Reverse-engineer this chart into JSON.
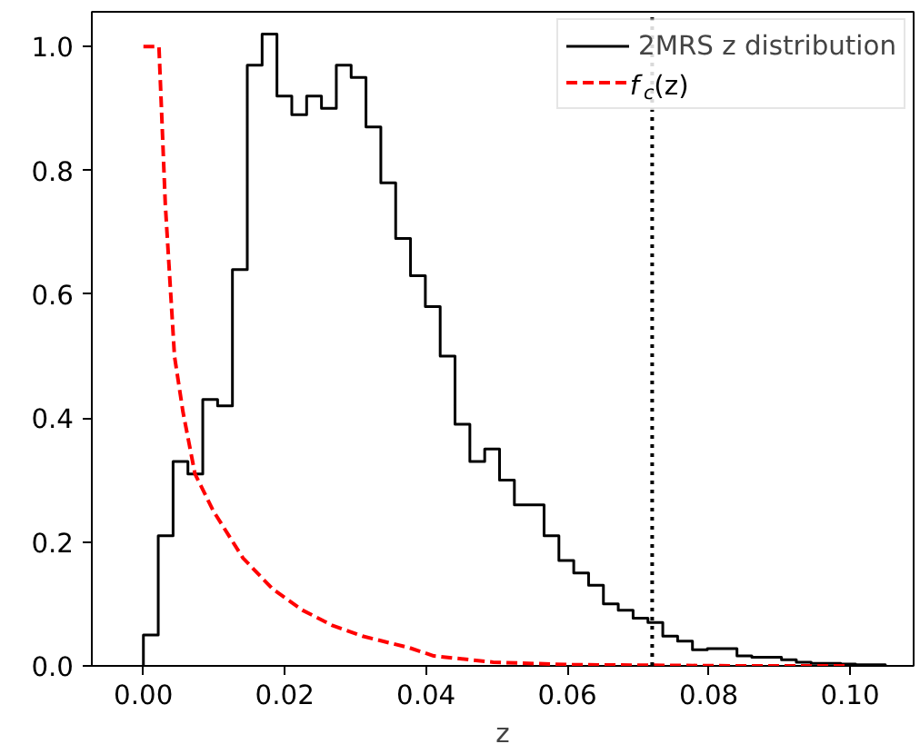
{
  "chart_data": {
    "type": "histogram",
    "xlabel": "z",
    "bins": [
      0,
      0.0021,
      0.0042,
      0.0063,
      0.0084,
      0.0105,
      0.0126,
      0.0147,
      0.0168,
      0.0189,
      0.021,
      0.0231,
      0.0252,
      0.0273,
      0.0294,
      0.0315,
      0.0336,
      0.0357,
      0.0378,
      0.0399,
      0.042,
      0.0441,
      0.0462,
      0.0483,
      0.0504,
      0.0525,
      0.0546,
      0.0567,
      0.0588,
      0.0609,
      0.063,
      0.0651,
      0.0672,
      0.0693,
      0.0714,
      0.0735,
      0.0756,
      0.0777,
      0.0798,
      0.0819,
      0.084,
      0.0861,
      0.0882,
      0.0903,
      0.0924,
      0.0945,
      0.0966,
      0.0987,
      0.1008,
      0.1029,
      0.105
    ],
    "series": [
      {
        "name": "2MRS z distribution",
        "type": "histogram",
        "color": "#000000",
        "values": [
          0.05,
          0.21,
          0.33,
          0.31,
          0.43,
          0.42,
          0.64,
          0.97,
          1.02,
          0.92,
          0.89,
          0.92,
          0.9,
          0.97,
          0.95,
          0.87,
          0.78,
          0.69,
          0.63,
          0.58,
          0.5,
          0.39,
          0.33,
          0.35,
          0.3,
          0.26,
          0.26,
          0.21,
          0.17,
          0.15,
          0.13,
          0.1,
          0.09,
          0.077,
          0.07,
          0.048,
          0.04,
          0.026,
          0.028,
          0.028,
          0.016,
          0.014,
          0.014,
          0.01,
          0.006,
          0.004,
          0.004,
          0.003,
          0.002,
          0.002
        ]
      },
      {
        "name": "f$_{c}$(z)",
        "type": "line",
        "line_style": "dashed",
        "color": "#ff0000",
        "x": [
          0,
          0.0022,
          0.0031,
          0.0044,
          0.0056,
          0.0073,
          0.0099,
          0.0141,
          0.0183,
          0.0225,
          0.0268,
          0.031,
          0.0377,
          0.0411,
          0.0495,
          0.06,
          0.072,
          0.085,
          0.1
        ],
        "values": [
          1.0,
          1.0,
          0.745,
          0.5,
          0.41,
          0.31,
          0.25,
          0.174,
          0.124,
          0.09,
          0.065,
          0.048,
          0.029,
          0.016,
          0.006,
          0.002,
          0.001,
          0.0,
          0.0
        ]
      }
    ],
    "ref_lines": [
      {
        "axis": "x",
        "value": 0.072,
        "line_style": "dotted",
        "color": "#000000"
      }
    ],
    "xlim": [
      -0.0073,
      0.109
    ],
    "ylim": [
      0,
      1.056
    ],
    "xticks": [
      {
        "value": 0,
        "label": "0.00"
      },
      {
        "value": 0.02,
        "label": "0.02"
      },
      {
        "value": 0.04,
        "label": "0.04"
      },
      {
        "value": 0.06,
        "label": "0.06"
      },
      {
        "value": 0.08,
        "label": "0.08"
      },
      {
        "value": 0.1,
        "label": "0.10"
      }
    ],
    "yticks": [
      {
        "value": 0,
        "label": "0.0"
      },
      {
        "value": 0.2,
        "label": "0.2"
      },
      {
        "value": 0.4,
        "label": "0.4"
      },
      {
        "value": 0.6,
        "label": "0.6"
      },
      {
        "value": 0.8,
        "label": "0.8"
      },
      {
        "value": 1.0,
        "label": "1.0"
      }
    ],
    "grid": false,
    "legend": "top right"
  }
}
